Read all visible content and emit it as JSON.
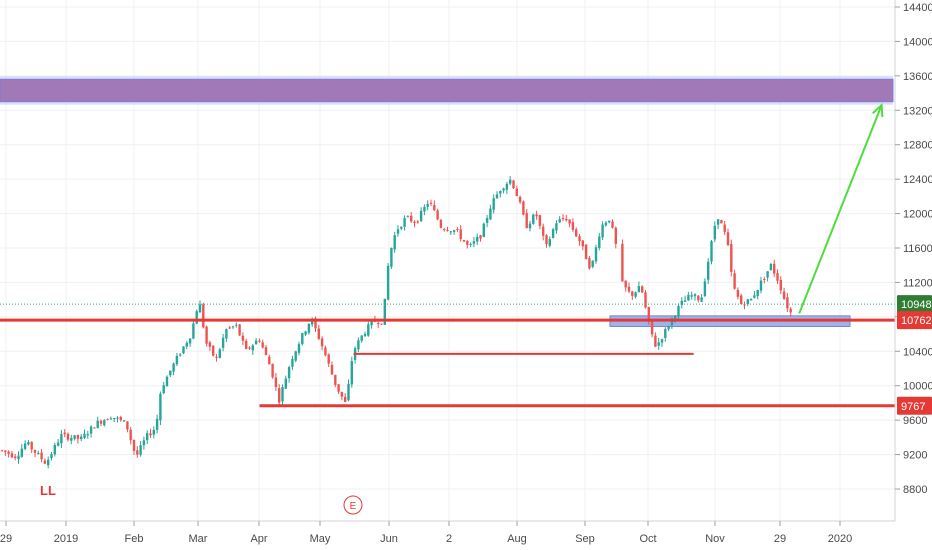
{
  "chart_data": {
    "type": "candlestick",
    "y_axis": {
      "ticks": [
        8800,
        9200,
        9600,
        10000,
        10400,
        10800,
        11200,
        11600,
        12000,
        12400,
        12800,
        13200,
        13600,
        14000,
        14400
      ],
      "range": [
        8480,
        14520
      ]
    },
    "x_axis": {
      "labels": [
        "29",
        "2019",
        "Feb",
        "Mar",
        "Apr",
        "May",
        "Jun",
        "2",
        "Aug",
        "Sep",
        "Oct",
        "Nov",
        "29",
        "2020"
      ]
    },
    "price_tags": [
      {
        "value": 10948,
        "label": "10948",
        "color": "#2e7d32"
      },
      {
        "value": 10762,
        "label": "10762",
        "color": "#e53935"
      },
      {
        "value": 9767,
        "label": "9767",
        "color": "#e53935"
      }
    ],
    "last_price": 10948,
    "horizontal_lines": [
      {
        "value": 10762,
        "from_fraction": 0.0,
        "to_fraction": 1.0,
        "color": "#e53935"
      },
      {
        "value": 10370,
        "from_fraction": 0.395,
        "to_fraction": 0.775,
        "color": "#e53935"
      },
      {
        "value": 9767,
        "from_fraction": 0.29,
        "to_fraction": 1.0,
        "color": "#e53935"
      }
    ],
    "zones": [
      {
        "from": 13300,
        "to": 13560,
        "color": "#7b6fd6",
        "fill": "#9b6fb0"
      },
      {
        "from": 10700,
        "to": 10800,
        "color": "#5b6fd6",
        "fill": "#90a8e8"
      }
    ],
    "arrow": {
      "from": {
        "date_fraction": 0.893,
        "value": 10840
      },
      "to": {
        "date_fraction": 0.985,
        "value": 13260
      },
      "color": "#4cde3c"
    },
    "annotations": [
      {
        "text": "LL"
      },
      {
        "text": "E"
      }
    ],
    "colors": {
      "up": "#26a69a",
      "down": "#ef5350",
      "grid": "#eef0f3"
    }
  }
}
